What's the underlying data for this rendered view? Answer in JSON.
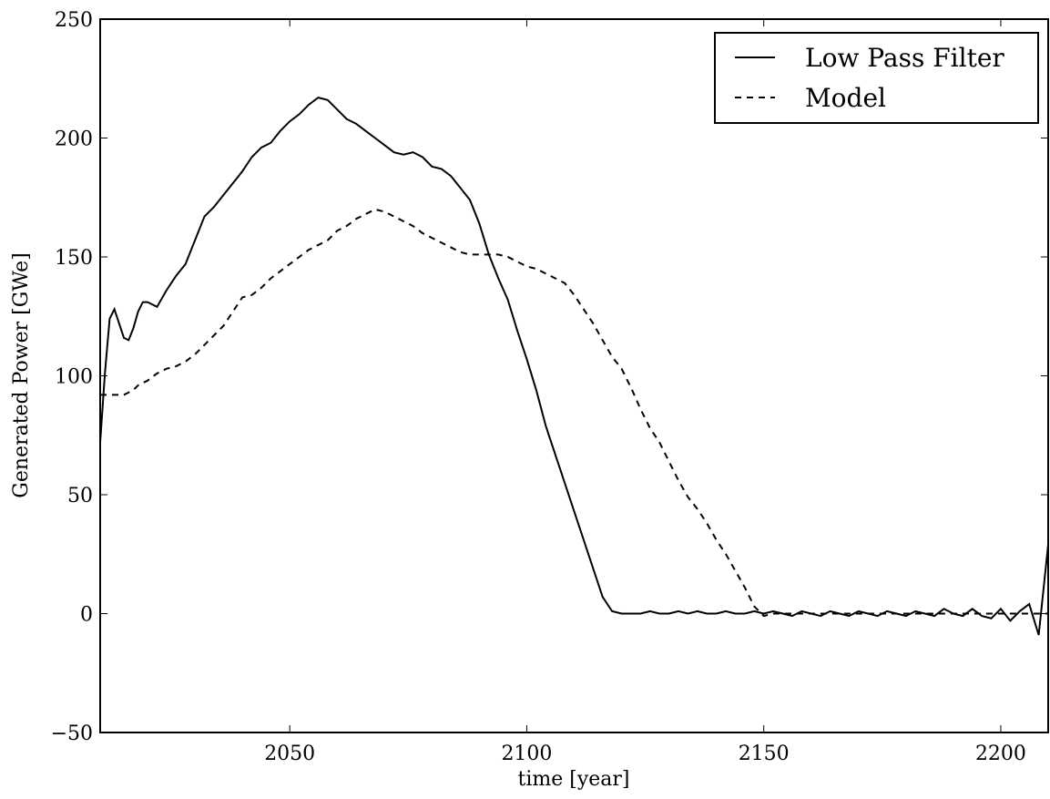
{
  "chart_data": {
    "type": "line",
    "xlabel": "time [year]",
    "ylabel": "Generated Power [GWe]",
    "xlim": [
      2010,
      2210
    ],
    "ylim": [
      -50,
      250
    ],
    "xticks": [
      2050,
      2100,
      2150,
      2200
    ],
    "yticks": [
      {
        "value": -50,
        "label": "−50"
      },
      0,
      50,
      100,
      150,
      200,
      250
    ],
    "legend": "upper right",
    "x": [
      2010,
      2011,
      2012,
      2013,
      2014,
      2015,
      2016,
      2017,
      2018,
      2019,
      2020,
      2022,
      2024,
      2026,
      2028,
      2030,
      2032,
      2034,
      2036,
      2038,
      2040,
      2042,
      2044,
      2046,
      2048,
      2050,
      2052,
      2054,
      2056,
      2058,
      2060,
      2062,
      2064,
      2066,
      2068,
      2070,
      2072,
      2074,
      2076,
      2078,
      2080,
      2082,
      2084,
      2086,
      2088,
      2090,
      2092,
      2094,
      2096,
      2098,
      2100,
      2102,
      2104,
      2106,
      2108,
      2110,
      2112,
      2114,
      2116,
      2118,
      2120,
      2122,
      2124,
      2126,
      2128,
      2130,
      2132,
      2134,
      2136,
      2138,
      2140,
      2142,
      2144,
      2146,
      2148,
      2150,
      2152,
      2154,
      2156,
      2158,
      2160,
      2162,
      2164,
      2166,
      2168,
      2170,
      2172,
      2174,
      2176,
      2178,
      2180,
      2182,
      2184,
      2186,
      2188,
      2190,
      2192,
      2194,
      2196,
      2198,
      2200,
      2202,
      2204,
      2206,
      2208,
      2210
    ],
    "series": [
      {
        "name": "Low Pass Filter",
        "color": "#000000",
        "linestyle": "solid",
        "values": [
          72,
          101,
          124,
          128,
          122,
          116,
          115,
          120,
          127,
          131,
          131,
          129,
          136,
          142,
          147,
          157,
          167,
          171,
          176,
          181,
          186,
          192,
          196,
          198,
          203,
          207,
          210,
          214,
          217,
          216,
          212,
          208,
          206,
          203,
          200,
          197,
          194,
          193,
          194,
          192,
          188,
          187,
          184,
          179,
          174,
          164,
          151,
          141,
          132,
          119,
          107,
          94,
          79,
          67,
          55,
          43,
          31,
          19,
          7,
          1,
          0,
          0,
          0,
          1,
          0,
          0,
          1,
          0,
          1,
          0,
          0,
          1,
          0,
          0,
          1,
          0,
          1,
          0,
          -1,
          1,
          0,
          -1,
          1,
          0,
          -1,
          1,
          0,
          -1,
          1,
          0,
          -1,
          1,
          0,
          -1,
          2,
          0,
          -1,
          2,
          -1,
          -2,
          2,
          -3,
          1,
          4,
          -9,
          29
        ]
      },
      {
        "name": "Model",
        "color": "#000000",
        "linestyle": "dashed",
        "values": [
          92,
          92,
          92,
          92,
          92,
          92,
          93,
          94,
          96,
          97,
          98,
          101,
          103,
          104,
          106,
          109,
          113,
          117,
          121,
          127,
          133,
          134,
          137,
          141,
          144,
          147,
          150,
          153,
          155,
          157,
          161,
          163,
          166,
          168,
          170,
          169,
          167,
          165,
          163,
          160,
          158,
          156,
          154,
          152,
          151,
          151,
          151,
          151,
          150,
          148,
          146,
          145,
          143,
          141,
          139,
          134,
          128,
          122,
          115,
          108,
          103,
          95,
          86,
          78,
          72,
          64,
          56,
          49,
          44,
          38,
          31,
          25,
          18,
          11,
          3,
          -1,
          0,
          0,
          0,
          0,
          0,
          0,
          0,
          0,
          0,
          0,
          0,
          0,
          0,
          0,
          0,
          0,
          0,
          0,
          0,
          0,
          0,
          0,
          0,
          0,
          0,
          0,
          0,
          0,
          0,
          0
        ]
      }
    ]
  }
}
